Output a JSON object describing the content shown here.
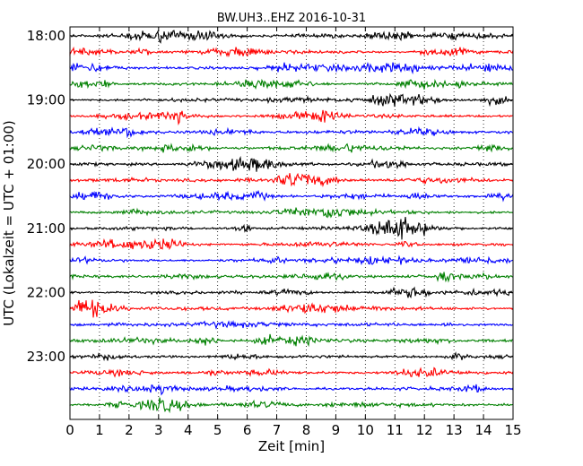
{
  "chart_data": {
    "type": "line",
    "title": "BW.UH3..EHZ 2016-10-31",
    "xlabel": "Zeit  [min]",
    "ylabel": "UTC (Lokalzeit = UTC + 01:00)",
    "xlim": [
      0,
      15
    ],
    "x_ticks": [
      "0",
      "1",
      "2",
      "3",
      "4",
      "5",
      "6",
      "7",
      "8",
      "9",
      "10",
      "11",
      "12",
      "13",
      "14",
      "15"
    ],
    "y_ticks": [
      "18:00",
      "19:00",
      "20:00",
      "21:00",
      "22:00",
      "23:00"
    ],
    "grid": true,
    "line_colors": [
      "#000000",
      "#ff0000",
      "#0000ff",
      "#008000"
    ],
    "traces": [
      {
        "start": "18:00",
        "color": "#000000"
      },
      {
        "start": "18:15",
        "color": "#ff0000"
      },
      {
        "start": "18:30",
        "color": "#0000ff"
      },
      {
        "start": "18:45",
        "color": "#008000"
      },
      {
        "start": "19:00",
        "color": "#000000"
      },
      {
        "start": "19:15",
        "color": "#ff0000"
      },
      {
        "start": "19:30",
        "color": "#0000ff"
      },
      {
        "start": "19:45",
        "color": "#008000"
      },
      {
        "start": "20:00",
        "color": "#000000"
      },
      {
        "start": "20:15",
        "color": "#ff0000"
      },
      {
        "start": "20:30",
        "color": "#0000ff"
      },
      {
        "start": "20:45",
        "color": "#008000"
      },
      {
        "start": "21:00",
        "color": "#000000"
      },
      {
        "start": "21:15",
        "color": "#ff0000"
      },
      {
        "start": "21:30",
        "color": "#0000ff"
      },
      {
        "start": "21:45",
        "color": "#008000"
      },
      {
        "start": "22:00",
        "color": "#000000"
      },
      {
        "start": "22:15",
        "color": "#ff0000"
      },
      {
        "start": "22:30",
        "color": "#0000ff"
      },
      {
        "start": "22:45",
        "color": "#008000"
      },
      {
        "start": "23:00",
        "color": "#000000"
      },
      {
        "start": "23:15",
        "color": "#ff0000"
      },
      {
        "start": "23:30",
        "color": "#0000ff"
      },
      {
        "start": "23:45",
        "color": "#008000"
      }
    ]
  }
}
